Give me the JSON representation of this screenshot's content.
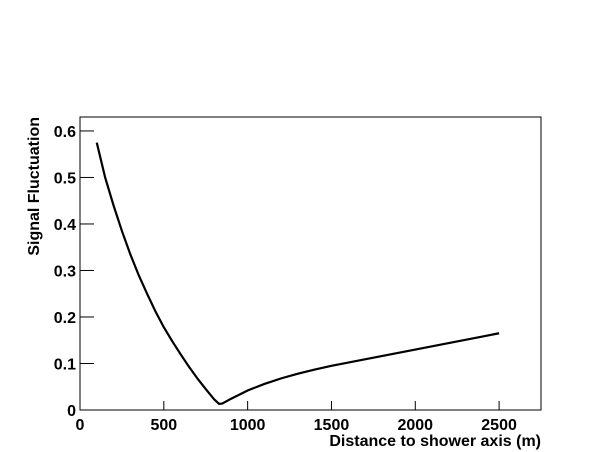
{
  "chart_data": {
    "type": "line",
    "x_label": "Distance to shower axis (m)",
    "y_label": "Signal Fluctuation",
    "x": [
      100,
      150,
      200,
      250,
      300,
      350,
      400,
      450,
      500,
      550,
      600,
      650,
      700,
      750,
      800,
      830,
      850,
      900,
      1000,
      1100,
      1200,
      1300,
      1400,
      1500,
      1600,
      1700,
      1800,
      1900,
      2000,
      2100,
      2200,
      2300,
      2400,
      2500
    ],
    "series": [
      {
        "color": "#000000",
        "values": [
          0.575,
          0.5,
          0.44,
          0.385,
          0.335,
          0.29,
          0.25,
          0.212,
          0.178,
          0.148,
          0.12,
          0.093,
          0.068,
          0.045,
          0.023,
          0.013,
          0.014,
          0.024,
          0.042,
          0.056,
          0.068,
          0.078,
          0.087,
          0.095,
          0.102,
          0.109,
          0.116,
          0.123,
          0.13,
          0.137,
          0.144,
          0.151,
          0.158,
          0.165
        ]
      }
    ],
    "xlim": [
      0,
      2750
    ],
    "xticks": [
      0,
      500,
      1000,
      1500,
      2000,
      2500
    ],
    "ylim": [
      0,
      0.63
    ],
    "yticks": [
      0,
      0.1,
      0.2,
      0.3,
      0.4,
      0.5,
      0.6
    ]
  }
}
